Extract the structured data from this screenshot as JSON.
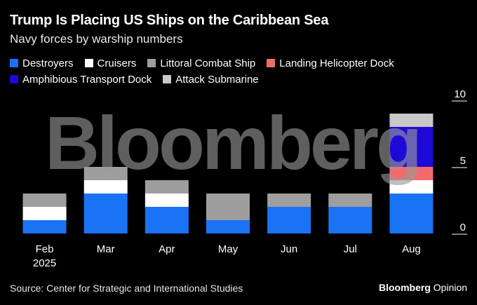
{
  "header": {
    "title": "Trump Is Placing US Ships on the Caribbean Sea",
    "subtitle": "Navy forces by warship numbers"
  },
  "chart_data": {
    "type": "bar",
    "stacked": true,
    "title": "Trump Is Placing US Ships on the Caribbean Sea",
    "subtitle": "Navy forces by warship numbers",
    "categories": [
      "Feb",
      "Mar",
      "Apr",
      "May",
      "Jun",
      "Jul",
      "Aug"
    ],
    "category_sublabels": [
      "2025",
      "",
      "",
      "",
      "",
      "",
      ""
    ],
    "series": [
      {
        "name": "Destroyers",
        "color": "#1a73f5",
        "values": [
          1,
          3,
          2,
          1,
          2,
          2,
          3
        ]
      },
      {
        "name": "Cruisers",
        "color": "#ffffff",
        "values": [
          1,
          1,
          1,
          0,
          0,
          0,
          1
        ]
      },
      {
        "name": "Littoral Combat Ship",
        "color": "#9e9e9e",
        "values": [
          1,
          1,
          1,
          2,
          1,
          1,
          0
        ]
      },
      {
        "name": "Landing Helicopter Dock",
        "color": "#f26b6b",
        "values": [
          0,
          0,
          0,
          0,
          0,
          0,
          1
        ]
      },
      {
        "name": "Amphibious Transport Dock",
        "color": "#1d0ad6",
        "values": [
          0,
          0,
          0,
          0,
          0,
          0,
          3
        ]
      },
      {
        "name": "Attack Submarine",
        "color": "#c8c8c8",
        "values": [
          0,
          0,
          0,
          0,
          0,
          0,
          1
        ]
      }
    ],
    "yticks": [
      0,
      5,
      10
    ],
    "ylim": [
      0,
      10
    ],
    "xlabel": "",
    "ylabel": "",
    "legend": "top-left",
    "grid": false
  },
  "footer": {
    "source": "Source: Center for Strategic and International Studies",
    "brand_name": "Bloomberg",
    "brand_suffix": "Opinion"
  },
  "watermark_text": "Bloomberg"
}
